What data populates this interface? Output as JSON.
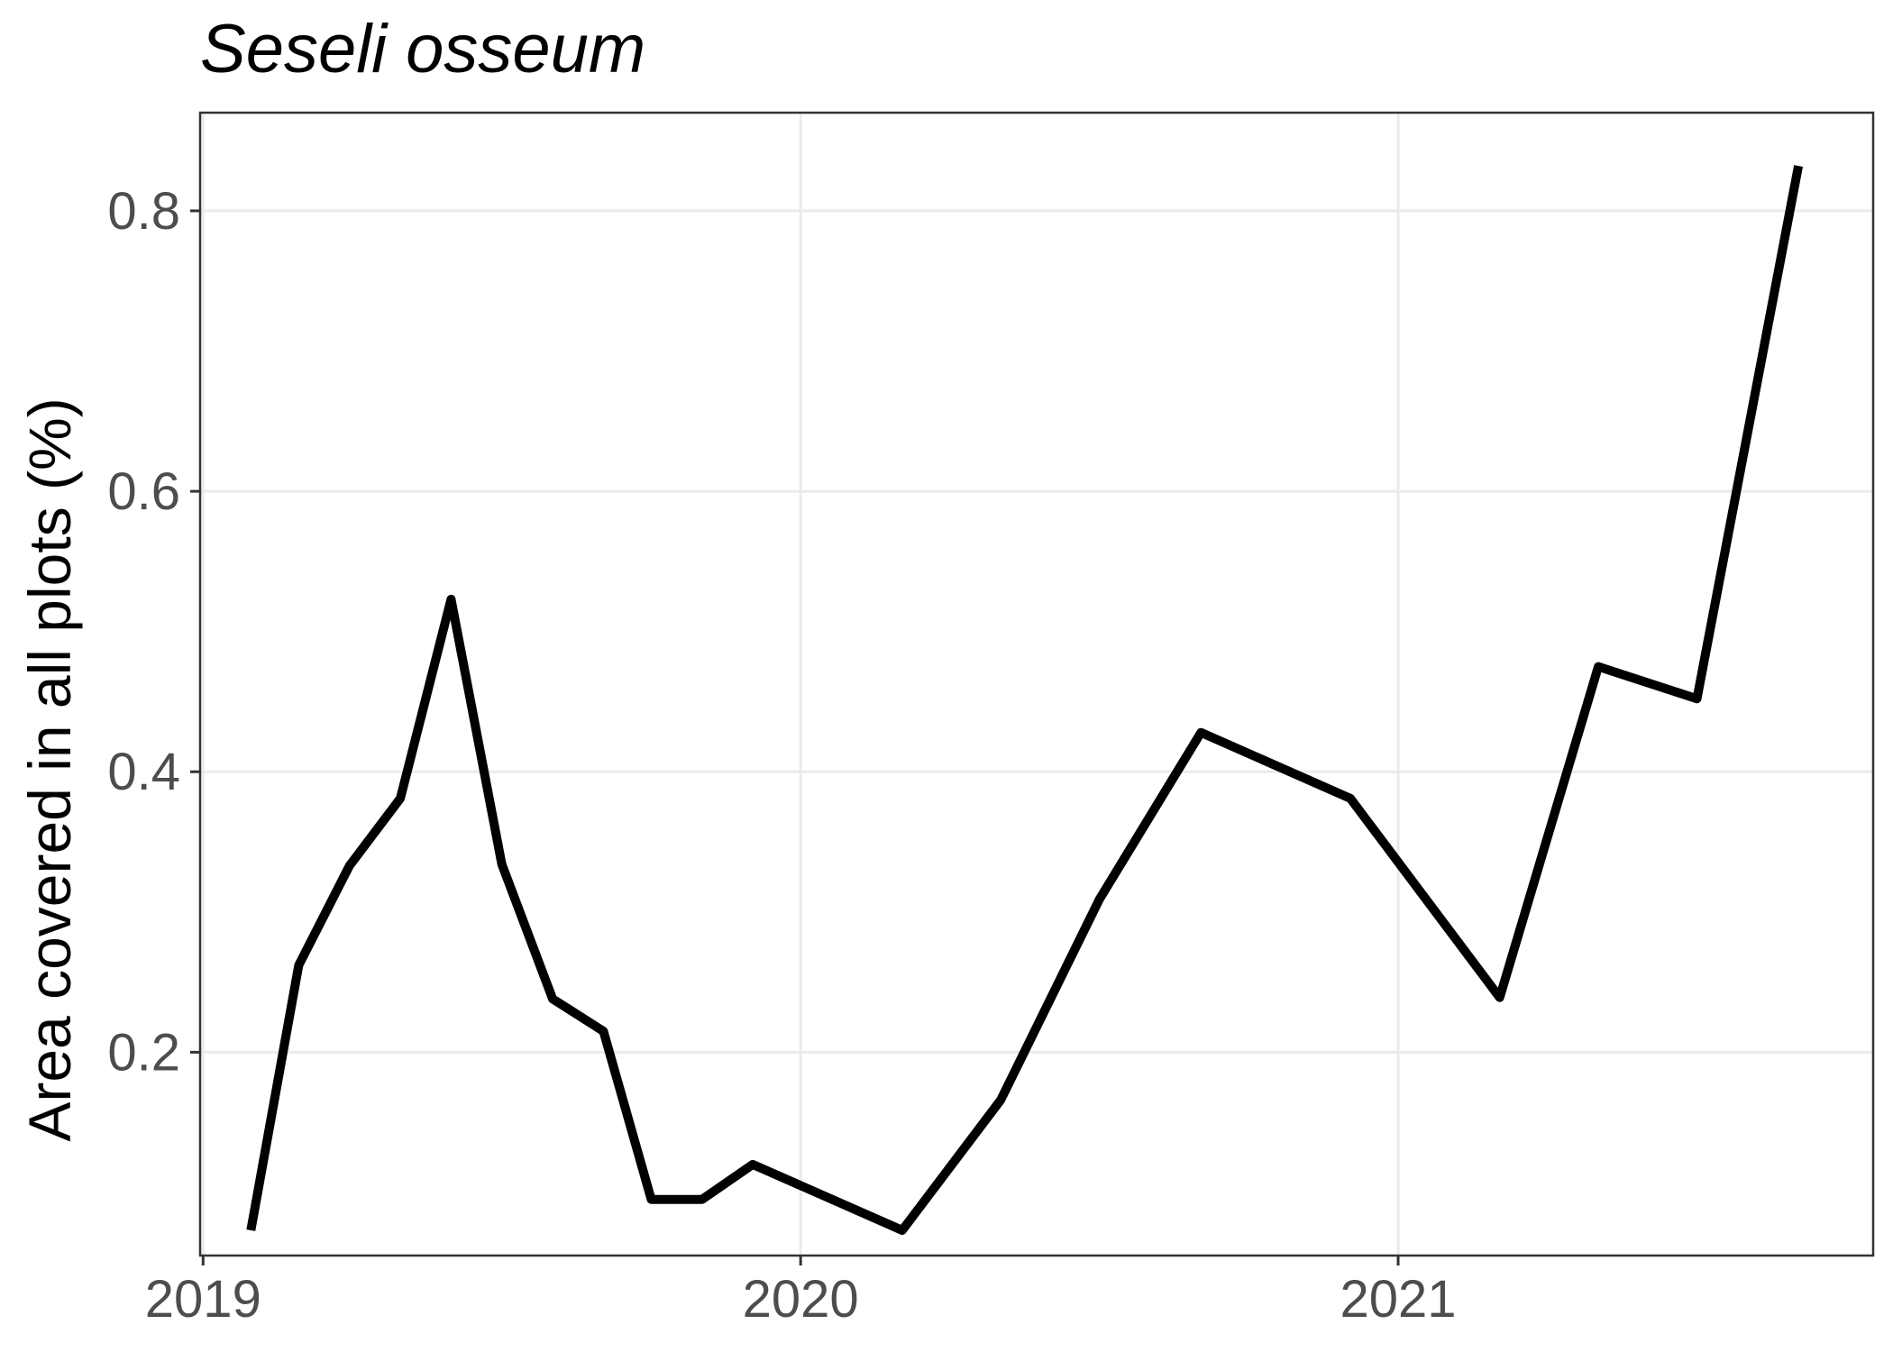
{
  "chart_data": {
    "type": "line",
    "title": "Seseli osseum",
    "xlabel": "",
    "ylabel": "Area covered in all plots (%)",
    "xlim": [
      2018.995,
      2021.795
    ],
    "ylim": [
      0.055,
      0.87
    ],
    "x_ticks": [
      2019,
      2020,
      2021
    ],
    "x_tick_labels": [
      "2019",
      "2020",
      "2021"
    ],
    "y_ticks": [
      0.2,
      0.4,
      0.6,
      0.8
    ],
    "y_tick_labels": [
      "0.2",
      "0.4",
      "0.6",
      "0.8"
    ],
    "grid": true,
    "series": [
      {
        "name": "Seseli osseum",
        "color": "#000000",
        "x": [
          2019.08,
          2019.16,
          2019.245,
          2019.33,
          2019.415,
          2019.5,
          2019.585,
          2019.67,
          2019.75,
          2019.835,
          2019.92,
          2020.17,
          2020.335,
          2020.5,
          2020.67,
          2020.92,
          2021.17,
          2021.335,
          2021.5,
          2021.67
        ],
        "y": [
          0.073,
          0.262,
          0.333,
          0.381,
          0.523,
          0.334,
          0.238,
          0.215,
          0.095,
          0.095,
          0.12,
          0.073,
          0.166,
          0.309,
          0.428,
          0.381,
          0.239,
          0.475,
          0.452,
          0.832
        ]
      }
    ]
  }
}
